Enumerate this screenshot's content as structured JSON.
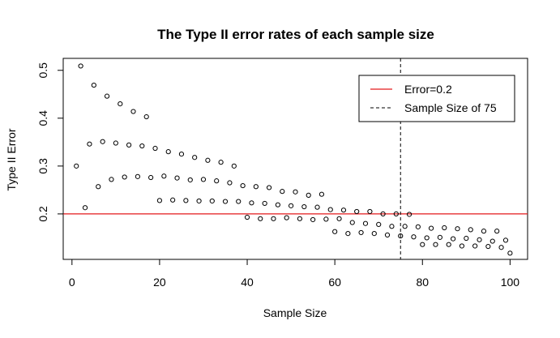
{
  "chart_data": {
    "type": "scatter",
    "title": "The Type II error rates of each sample size",
    "xlabel": "Sample Size",
    "ylabel": "Type II Error",
    "xlim": [
      -2,
      104
    ],
    "ylim": [
      0.105,
      0.525
    ],
    "x_ticks": [
      0,
      20,
      40,
      60,
      80,
      100
    ],
    "x_tick_labels": [
      "0",
      "20",
      "40",
      "60",
      "80",
      "100"
    ],
    "y_ticks": [
      0.2,
      0.3,
      0.4,
      0.5
    ],
    "y_tick_labels": [
      "0.2",
      "0.3",
      "0.4",
      "0.5"
    ],
    "grid": false,
    "legend_position": "top-right",
    "reference_lines": [
      {
        "orientation": "horizontal",
        "value": 0.2,
        "label": "Error=0.2",
        "color": "#e41a1c",
        "style": "solid"
      },
      {
        "orientation": "vertical",
        "value": 75,
        "label": "Sample Size of 75",
        "color": "#000000",
        "style": "dashed"
      }
    ],
    "series": [
      {
        "marker": "open-circle",
        "color": "#000000",
        "x": [
          1,
          2,
          3,
          4,
          5,
          6,
          7,
          8,
          9,
          10,
          11,
          12,
          13,
          14,
          15,
          16,
          17,
          18,
          19,
          20,
          21,
          22,
          23,
          24,
          25,
          26,
          27,
          28,
          29,
          30,
          31,
          32,
          33,
          34,
          35,
          36,
          37,
          38,
          39,
          40,
          41,
          42,
          43,
          44,
          45,
          46,
          47,
          48,
          49,
          50,
          51,
          52,
          53,
          54,
          55,
          56,
          57,
          58,
          59,
          60,
          61,
          62,
          63,
          64,
          65,
          66,
          67,
          68,
          69,
          70,
          71,
          72,
          73,
          74,
          75,
          76,
          77,
          78,
          79,
          80,
          81,
          82,
          83,
          84,
          85,
          86,
          87,
          88,
          89,
          90,
          91,
          92,
          93,
          94,
          95,
          96,
          97,
          98,
          99,
          100
        ],
        "y": [
          0.3,
          0.509,
          0.213,
          0.346,
          0.469,
          0.257,
          0.351,
          0.446,
          0.272,
          0.348,
          0.43,
          0.277,
          0.344,
          0.414,
          0.278,
          0.342,
          0.403,
          0.276,
          0.337,
          0.228,
          0.279,
          0.33,
          0.229,
          0.275,
          0.325,
          0.228,
          0.271,
          0.318,
          0.227,
          0.272,
          0.312,
          0.227,
          0.269,
          0.308,
          0.226,
          0.265,
          0.3,
          0.226,
          0.259,
          0.193,
          0.223,
          0.257,
          0.19,
          0.222,
          0.255,
          0.19,
          0.219,
          0.247,
          0.192,
          0.217,
          0.246,
          0.19,
          0.215,
          0.239,
          0.188,
          0.214,
          0.241,
          0.189,
          0.209,
          0.163,
          0.19,
          0.208,
          0.159,
          0.182,
          0.205,
          0.161,
          0.18,
          0.205,
          0.159,
          0.178,
          0.2,
          0.156,
          0.174,
          0.2,
          0.154,
          0.174,
          0.199,
          0.152,
          0.173,
          0.136,
          0.15,
          0.17,
          0.136,
          0.151,
          0.171,
          0.136,
          0.148,
          0.169,
          0.133,
          0.149,
          0.167,
          0.133,
          0.146,
          0.164,
          0.132,
          0.143,
          0.164,
          0.13,
          0.145,
          0.118
        ]
      }
    ]
  }
}
